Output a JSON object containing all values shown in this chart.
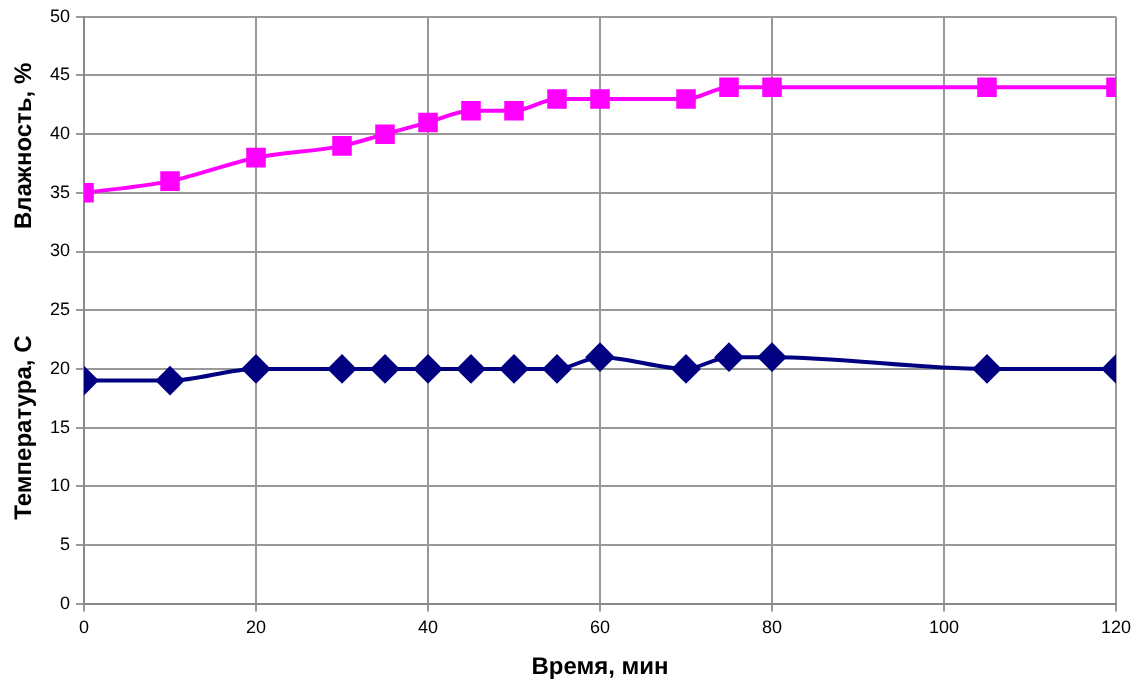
{
  "chart_data": {
    "type": "line",
    "xlabel": "Время, мин",
    "ylabel": "Влажность, %",
    "y2label": "Температура, С",
    "xlim": [
      0,
      120
    ],
    "xticks": [
      0,
      20,
      40,
      60,
      80,
      100,
      120
    ],
    "ylim": [
      0,
      50
    ],
    "yticks": [
      0,
      5,
      10,
      15,
      20,
      25,
      30,
      35,
      40,
      45,
      50
    ],
    "grid": true,
    "legend": false,
    "series": [
      {
        "color": "#ff00ff",
        "marker": "square",
        "x": [
          0,
          10,
          20,
          30,
          35,
          40,
          45,
          50,
          55,
          60,
          70,
          75,
          80,
          105,
          120
        ],
        "values": [
          35,
          36,
          38,
          39,
          40,
          41,
          42,
          42,
          43,
          43,
          43,
          44,
          44,
          44,
          44
        ]
      },
      {
        "color": "#000080",
        "marker": "diamond",
        "x": [
          0,
          10,
          20,
          30,
          35,
          40,
          45,
          50,
          55,
          60,
          70,
          75,
          80,
          105,
          120
        ],
        "values": [
          19,
          19,
          20,
          20,
          20,
          20,
          20,
          20,
          20,
          21,
          20,
          21,
          21,
          20,
          20
        ]
      }
    ]
  }
}
